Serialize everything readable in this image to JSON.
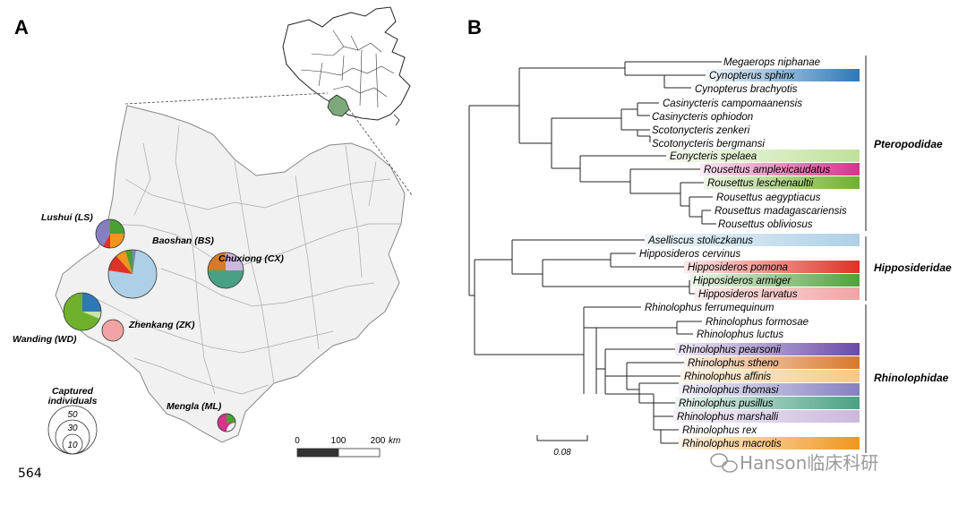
{
  "panel_a": {
    "letter": "A",
    "sites": [
      {
        "name": "Lushui (LS)"
      },
      {
        "name": "Baoshan (BS)"
      },
      {
        "name": "Chuxiong (CX)"
      },
      {
        "name": "Wanding (WD)"
      },
      {
        "name": "Zhenkang (ZK)"
      },
      {
        "name": "Mengla (ML)"
      }
    ],
    "legend": {
      "title_line1": "Captured",
      "title_line2": "individuals",
      "values": [
        "50",
        "30",
        "10"
      ]
    },
    "scale_bar": {
      "ticks": [
        "0",
        "100",
        "200"
      ],
      "unit": "km"
    }
  },
  "panel_b": {
    "letter": "B",
    "species": [
      "Megaerops niphanae",
      "Cynopterus sphinx",
      "Cynopterus brachyotis",
      "Casinycteris campomaanensis",
      "Casinycteris ophiodon",
      "Scotonycteris zenkeri",
      "Scotonycteris bergmansi",
      "Eonycteris spelaea",
      "Rousettus amplexicaudatus",
      "Rousettus leschenaultii",
      "Rousettus aegyptiacus",
      "Rousettus madagascariensis",
      "Rousettus obliviosus",
      "Aselliscus stoliczkanus",
      "Hipposideros cervinus",
      "Hipposideros pomona",
      "Hipposideros armiger",
      "Hipposideros larvatus",
      "Rhinolophus ferrumequinum",
      "Rhinolophus formosae",
      "Rhinolophus luctus",
      "Rhinolophus pearsonii",
      "Rhinolophus stheno",
      "Rhinolophus affinis",
      "Rhinolophus thomasi",
      "Rhinolophus pusillus",
      "Rhinolophus marshalli",
      "Rhinolophus rex",
      "Rhinolophus macrotis"
    ],
    "families": [
      "Pteropodidae",
      "Hipposideridae",
      "Rhinolophidae"
    ],
    "scale": "0.08"
  },
  "line_number": "564",
  "watermark": "Hanson临床科研",
  "colors": {
    "cynopterus_sphinx": "#2e78b7",
    "eonycteris": "#bfe29a",
    "amplexicaudatus": "#d6338c",
    "leschenaultii": "#6fb02d",
    "aselliscus": "#aed0e6",
    "pomona": "#de3226",
    "armiger": "#4fa13a",
    "larvatus": "#f2a4a4",
    "pearsonii": "#6a4aa8",
    "stheno": "#d8782a",
    "affinis": "#f5c984",
    "thomasi": "#8480c0",
    "pusillus": "#4aa084",
    "marshalli": "#cbb8dc",
    "macrotis": "#f0961c",
    "map_fill": "#f1f1f1",
    "yunnan": "#7da87b"
  }
}
